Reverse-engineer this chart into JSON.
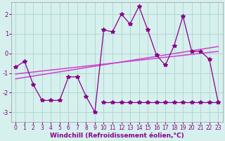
{
  "title": "",
  "xlabel": "Windchill (Refroidissement éolien,°C)",
  "bg_color": "#d6f0ee",
  "grid_color": "#b0d8d0",
  "line_color": "#880088",
  "trend_color": "#cc44cc",
  "jagged_x": [
    0,
    1,
    2,
    3,
    4,
    5,
    6,
    7,
    8,
    9,
    10,
    11,
    12,
    13,
    14,
    15,
    16,
    17,
    18,
    19,
    20,
    21,
    22,
    23
  ],
  "jagged_y": [
    -0.7,
    -0.4,
    -1.6,
    -2.4,
    -2.4,
    -2.4,
    -1.2,
    -1.2,
    -2.2,
    -3.0,
    1.2,
    1.1,
    2.0,
    1.5,
    2.4,
    1.2,
    -0.1,
    -0.6,
    0.4,
    1.9,
    0.1,
    0.1,
    -0.3,
    -2.5
  ],
  "flat_x": [
    10,
    11,
    12,
    13,
    14,
    15,
    16,
    17,
    18,
    19,
    20,
    21,
    22,
    23
  ],
  "flat_y": [
    -2.5,
    -2.5,
    -2.5,
    -2.5,
    -2.5,
    -2.5,
    -2.5,
    -2.5,
    -2.5,
    -2.5,
    -2.5,
    -2.5,
    -2.5,
    -2.5
  ],
  "trend_x": [
    0,
    23
  ],
  "trend_y": [
    -1.3,
    0.35
  ],
  "trend2_x": [
    0,
    23
  ],
  "trend2_y": [
    -1.05,
    0.1
  ],
  "ylim": [
    -3.5,
    2.6
  ],
  "xlim": [
    -0.5,
    23.5
  ],
  "xticks": [
    0,
    1,
    2,
    3,
    4,
    5,
    6,
    7,
    8,
    9,
    10,
    11,
    12,
    13,
    14,
    15,
    16,
    17,
    18,
    19,
    20,
    21,
    22,
    23
  ],
  "yticks": [
    -3,
    -2,
    -1,
    0,
    1,
    2
  ],
  "marker": "*",
  "markersize": 4,
  "linewidth": 0.9,
  "xlabel_color": "#880088",
  "tick_color": "#880088",
  "tick_fontsize": 5.5,
  "xlabel_fontsize": 6.5
}
